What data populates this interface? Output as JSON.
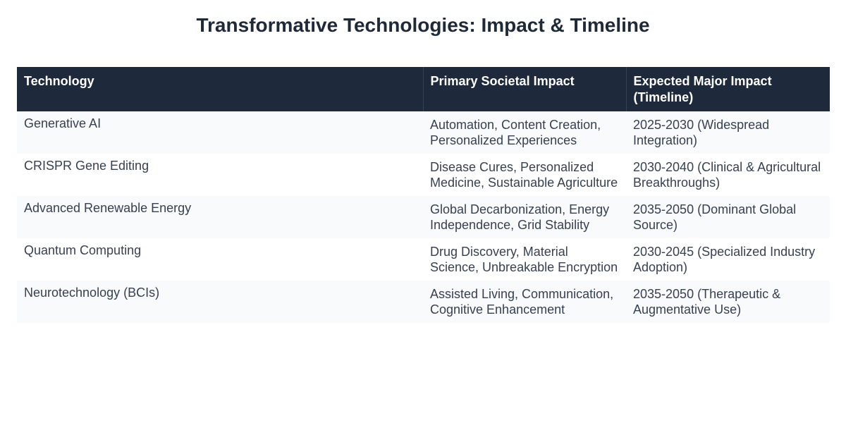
{
  "title": "Transformative Technologies: Impact & Timeline",
  "chart_data": {
    "type": "table",
    "columns": [
      "Technology",
      "Primary Societal Impact",
      "Expected Major Impact (Timeline)"
    ],
    "rows": [
      {
        "technology": "Generative AI",
        "impact": "Automation, Content Creation, Personalized Experiences",
        "timeline": "2025-2030 (Widespread Integration)"
      },
      {
        "technology": "CRISPR Gene Editing",
        "impact": "Disease Cures, Personalized Medicine, Sustainable Agriculture",
        "timeline": "2030-2040 (Clinical & Agricultural Breakthroughs)"
      },
      {
        "technology": "Advanced Renewable Energy",
        "impact": "Global Decarbonization, Energy Independence, Grid Stability",
        "timeline": "2035-2050 (Dominant Global Source)"
      },
      {
        "technology": "Quantum Computing",
        "impact": "Drug Discovery, Material Science, Unbreakable Encryption",
        "timeline": "2030-2045 (Specialized Industry Adoption)"
      },
      {
        "technology": "Neurotechnology (BCIs)",
        "impact": "Assisted Living, Communication, Cognitive Enhancement",
        "timeline": "2035-2050 (Therapeutic & Augmentative Use)"
      }
    ]
  },
  "colors": {
    "header_bg": "#1e293b",
    "header_text": "#ffffff",
    "row_alt_bg": "#f8fafc",
    "body_text": "#374151",
    "title_text": "#1f2937"
  }
}
